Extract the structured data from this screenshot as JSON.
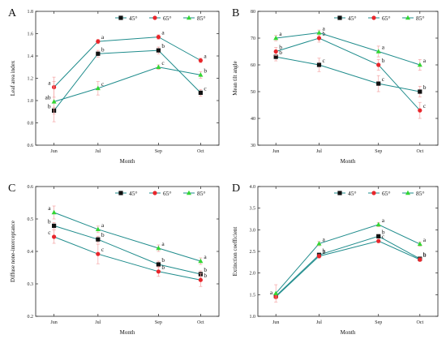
{
  "chart_data": [
    {
      "panel": "A",
      "type": "line",
      "categories": [
        "Jun",
        "Jul",
        "Sep",
        "Oct"
      ],
      "xlabel": "Month",
      "ylabel": "Leaf area index",
      "ylim": [
        0.6,
        1.8
      ],
      "yticks": [
        "0.6",
        "0.8",
        "1.0",
        "1.2",
        "1.4",
        "1.6",
        "1.8"
      ],
      "ytick_values": [
        0.6,
        0.8,
        1.0,
        1.2,
        1.4,
        1.6,
        1.8
      ],
      "series": [
        {
          "name": "45°",
          "values": [
            0.91,
            1.42,
            1.45,
            1.07
          ],
          "errors": [
            0.03,
            0.03,
            0.03,
            0.03
          ],
          "labels": [
            "b",
            "b",
            "b",
            "c"
          ]
        },
        {
          "name": "65°",
          "values": [
            1.12,
            1.53,
            1.57,
            1.36
          ],
          "errors": [
            0.09,
            0.02,
            0.02,
            0.02
          ],
          "labels": [
            "a",
            "a",
            "a",
            "a"
          ]
        },
        {
          "name": "85°",
          "values": [
            0.99,
            1.11,
            1.3,
            1.23
          ],
          "errors": [
            0.18,
            0.06,
            0.02,
            0.03
          ],
          "labels": [
            "ab",
            "c",
            "c",
            "b"
          ]
        }
      ]
    },
    {
      "panel": "B",
      "type": "line",
      "categories": [
        "Jun",
        "Jul",
        "Sep",
        "Oct"
      ],
      "xlabel": "Month",
      "ylabel": "Mean tilt angle",
      "ylim": [
        30,
        80
      ],
      "yticks": [
        "30",
        "40",
        "50",
        "60",
        "70",
        "80"
      ],
      "ytick_values": [
        30,
        40,
        50,
        60,
        70,
        80
      ],
      "series": [
        {
          "name": "45°",
          "values": [
            63,
            60,
            53,
            50
          ],
          "errors": [
            1.5,
            2.5,
            3,
            2
          ],
          "labels": [
            "b",
            "c",
            "c",
            "b"
          ]
        },
        {
          "name": "65°",
          "values": [
            65,
            70,
            60,
            43
          ],
          "errors": [
            1.5,
            1.5,
            2,
            3
          ],
          "labels": [
            "b",
            "b",
            "b",
            "c"
          ]
        },
        {
          "name": "85°",
          "values": [
            70,
            72,
            65,
            60
          ],
          "errors": [
            1,
            1,
            2,
            2
          ],
          "labels": [
            "a",
            "a",
            "a",
            "a"
          ]
        }
      ]
    },
    {
      "panel": "C",
      "type": "line",
      "categories": [
        "Jun",
        "Jul",
        "Sep",
        "Oct"
      ],
      "xlabel": "Month",
      "ylabel": "Diffuse none-interceptance",
      "ylim": [
        0.2,
        0.6
      ],
      "yticks": [
        "0.2",
        "0.3",
        "0.4",
        "0.5",
        "0.6"
      ],
      "ytick_values": [
        0.2,
        0.3,
        0.4,
        0.5,
        0.6
      ],
      "series": [
        {
          "name": "45°",
          "values": [
            0.479,
            0.437,
            0.36,
            0.33
          ],
          "errors": [
            0.01,
            0.01,
            0.01,
            0.01
          ],
          "labels": [
            "b",
            "b",
            "b",
            "b"
          ]
        },
        {
          "name": "65°",
          "values": [
            0.445,
            0.392,
            0.338,
            0.312
          ],
          "errors": [
            0.02,
            0.03,
            0.015,
            0.02
          ],
          "labels": [
            "c",
            "c",
            "b",
            "b"
          ]
        },
        {
          "name": "85°",
          "values": [
            0.52,
            0.468,
            0.41,
            0.37
          ],
          "errors": [
            0.02,
            0.01,
            0.01,
            0.01
          ],
          "labels": [
            "a",
            "a",
            "a",
            "a"
          ]
        }
      ]
    },
    {
      "panel": "D",
      "type": "line",
      "categories": [
        "Jun",
        "Jul",
        "Sep",
        "Oct"
      ],
      "xlabel": "Month",
      "ylabel": "Extinction coefficient",
      "ylim": [
        1.0,
        4.0
      ],
      "yticks": [
        "1.0",
        "1.5",
        "2.0",
        "2.5",
        "3.0",
        "3.5",
        "4.0"
      ],
      "ytick_values": [
        1.0,
        1.5,
        2.0,
        2.5,
        3.0,
        3.5,
        4.0
      ],
      "series": [
        {
          "name": "45°",
          "values": [
            1.47,
            2.42,
            2.85,
            2.33
          ],
          "errors": [
            0.05,
            0.04,
            0.04,
            0.04
          ],
          "labels": [
            "",
            "b",
            "b",
            "b"
          ]
        },
        {
          "name": "65°",
          "values": [
            1.45,
            2.39,
            2.74,
            2.31
          ],
          "errors": [
            0.05,
            0.04,
            0.04,
            0.04
          ],
          "labels": [
            "a",
            "b",
            "c",
            "b"
          ]
        },
        {
          "name": "85°",
          "values": [
            1.53,
            2.68,
            3.12,
            2.67
          ],
          "errors": [
            0.2,
            0.05,
            0.05,
            0.05
          ],
          "labels": [
            "",
            "a",
            "a",
            "a"
          ]
        }
      ]
    }
  ],
  "series_style": [
    {
      "color": "#111111",
      "marker": "square"
    },
    {
      "color": "#e8262b",
      "marker": "circle"
    },
    {
      "color": "#33d633",
      "marker": "triangle"
    }
  ],
  "line_color": "#1f8c8c",
  "error_color": "#f4a3a3"
}
